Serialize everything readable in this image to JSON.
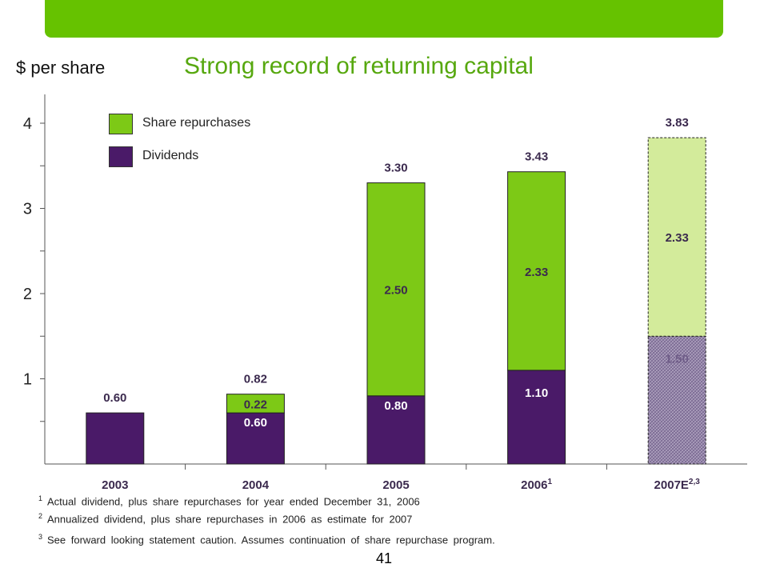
{
  "colors": {
    "brand_green": "#66c200",
    "repurchase_green": "#7dc916",
    "repurchase_estimate": "#d3eb9b",
    "dividend_purple": "#4a1a68",
    "title_green": "#57a80f"
  },
  "page": {
    "y_unit": "$ per share",
    "title": "Strong record of returning capital",
    "page_number": "41"
  },
  "legend": [
    {
      "label": "Share repurchases",
      "color": "#7dc916"
    },
    {
      "label": "Dividends",
      "color": "#4a1a68"
    }
  ],
  "footnotes": [
    {
      "mark": "1",
      "text": "Actual dividend, plus share repurchases for year ended December 31, 2006"
    },
    {
      "mark": "2",
      "text": "Annualized dividend, plus share repurchases in 2006 as estimate for 2007"
    },
    {
      "mark": "3",
      "text": "See forward looking statement caution. Assumes continuation of share repurchase program."
    }
  ],
  "chart_data": {
    "type": "bar",
    "stacked": true,
    "title": "Strong record of returning capital",
    "ylabel": "$ per share",
    "xlabel": "",
    "ylim": [
      0,
      4.4
    ],
    "yticks": [
      1,
      2,
      3,
      4
    ],
    "grid": false,
    "legend_position": "top-left",
    "categories": [
      {
        "label": "2003",
        "sup": ""
      },
      {
        "label": "2004",
        "sup": ""
      },
      {
        "label": "2005",
        "sup": ""
      },
      {
        "label": "2006",
        "sup": "1"
      },
      {
        "label": "2007E",
        "sup": "2,3"
      }
    ],
    "series": [
      {
        "name": "Dividends",
        "values": [
          0.6,
          0.6,
          0.8,
          1.1,
          1.5
        ],
        "labels": [
          "",
          "0.60",
          "0.80",
          "1.10",
          "1.50"
        ]
      },
      {
        "name": "Share repurchases",
        "values": [
          0,
          0.22,
          2.5,
          2.33,
          2.33
        ],
        "labels": [
          "",
          "0.22",
          "2.50",
          "2.33",
          "2.33"
        ]
      }
    ],
    "totals": [
      "0.60",
      "0.82",
      "3.30",
      "3.43",
      "3.83"
    ],
    "estimate_index": 4
  }
}
